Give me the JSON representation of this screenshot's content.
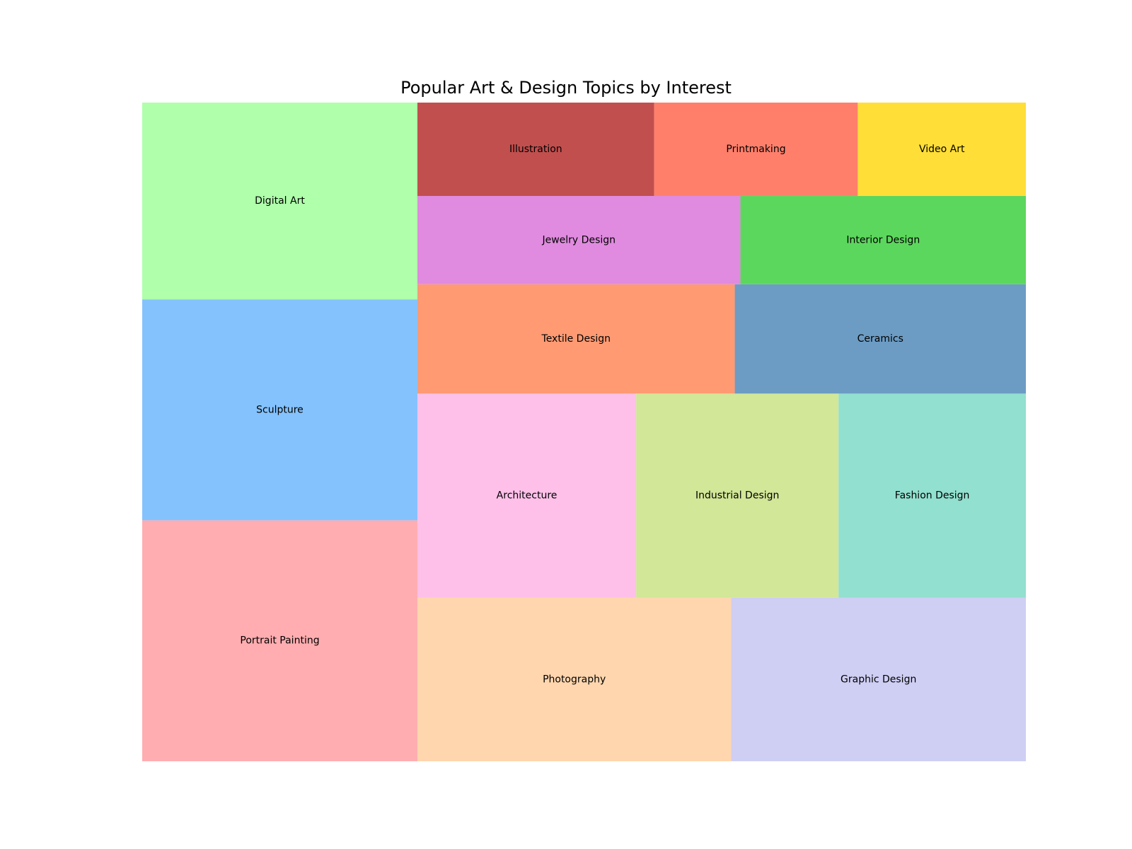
{
  "chart_data": {
    "type": "treemap",
    "title": "Popular Art & Design Topics by Interest",
    "items": [
      {
        "label": "Portrait Painting",
        "value": 3.0,
        "color": "#FFADB0"
      },
      {
        "label": "Sculpture",
        "value": 2.75,
        "color": "#84C2FE"
      },
      {
        "label": "Digital Art",
        "value": 2.45,
        "color": "#AFFFAB"
      },
      {
        "label": "Photography",
        "value": 2.32,
        "color": "#FFD6AE"
      },
      {
        "label": "Graphic Design",
        "value": 2.18,
        "color": "#CFCEF3"
      },
      {
        "label": "Architecture",
        "value": 2.02,
        "color": "#FEC0E9"
      },
      {
        "label": "Industrial Design",
        "value": 1.87,
        "color": "#D2E798"
      },
      {
        "label": "Fashion Design",
        "value": 1.73,
        "color": "#92E0CF"
      },
      {
        "label": "Textile Design",
        "value": 1.57,
        "color": "#FF9A73"
      },
      {
        "label": "Ceramics",
        "value": 1.44,
        "color": "#6C9CC4"
      },
      {
        "label": "Jewelry Design",
        "value": 1.29,
        "color": "#E08BDF"
      },
      {
        "label": "Interior Design",
        "value": 1.14,
        "color": "#5CD75D"
      },
      {
        "label": "Illustration",
        "value": 1.0,
        "color": "#C14F4E"
      },
      {
        "label": "Printmaking",
        "value": 0.86,
        "color": "#FF7F6B"
      },
      {
        "label": "Video Art",
        "value": 0.71,
        "color": "#FFDE37"
      }
    ]
  }
}
